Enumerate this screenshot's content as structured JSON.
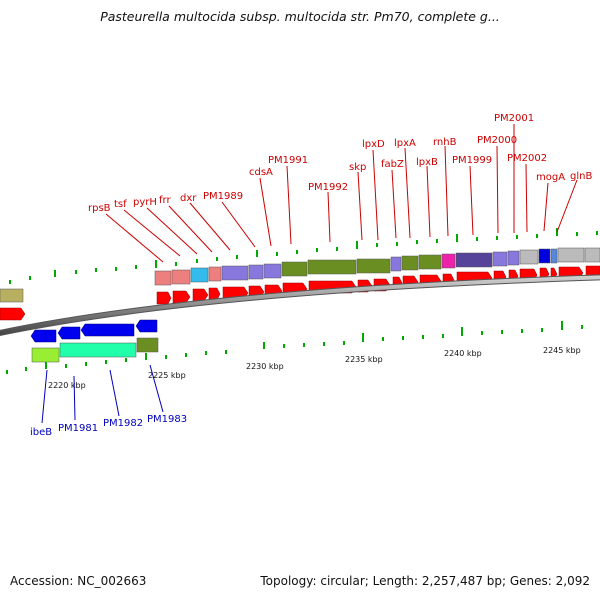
{
  "title": "Pasteurella multocida subsp. multocida str. Pm70, complete g...",
  "footer": {
    "accession": "Accession: NC_002663",
    "summary": "Topology: circular; Length: 2,257,487 bp; Genes: 2,092"
  },
  "scale_labels": [
    "2220 kbp",
    "2225 kbp",
    "2230 kbp",
    "2235 kbp",
    "2240 kbp",
    "2245 kbp"
  ],
  "upper_gene_labels": [
    "rpsB",
    "tsf",
    "pyrH",
    "frr",
    "dxr",
    "PM1989",
    "cdsA",
    "PM1991",
    "PM1992",
    "skp",
    "lpxD",
    "fabZ",
    "lpxA",
    "lpxB",
    "rnhB",
    "PM1999",
    "PM2000",
    "PM2001",
    "PM2002",
    "mogA",
    "glnB"
  ],
  "lower_gene_labels": [
    "ibeB",
    "PM1981",
    "PM1982",
    "PM1983"
  ],
  "colors": {
    "label_upper": "#cc0000",
    "label_lower": "#0000bb",
    "cds_forward": "#ff0000",
    "cds_reverse": "#0000ee",
    "olive": "#6b8e23",
    "lavender": "#8877dd",
    "tick": "#00aa00",
    "backbone": "#888888"
  }
}
